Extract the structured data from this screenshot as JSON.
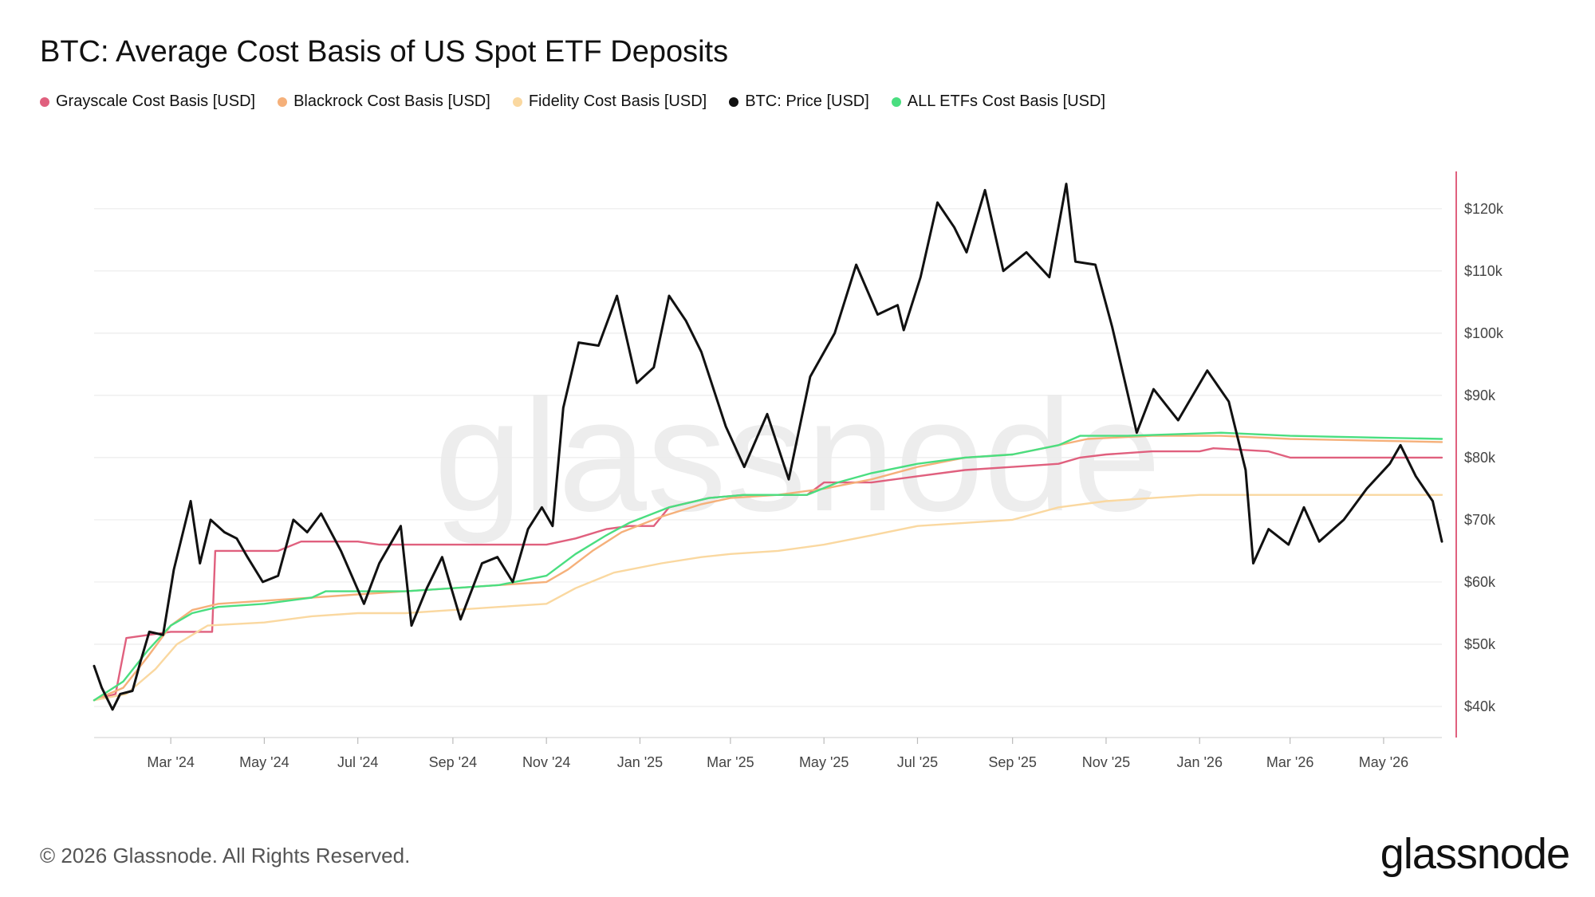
{
  "title": "BTC: Average Cost Basis of US Spot ETF Deposits",
  "footer": "© 2026 Glassnode. All Rights Reserved.",
  "brand": "glassnode",
  "watermark": "glassnode",
  "legend": [
    {
      "label": "Grayscale Cost Basis [USD]",
      "color": "#e0607e"
    },
    {
      "label": "Blackrock Cost Basis [USD]",
      "color": "#f5b07a"
    },
    {
      "label": "Fidelity Cost Basis [USD]",
      "color": "#fad8a0"
    },
    {
      "label": "BTC: Price [USD]",
      "color": "#111111"
    },
    {
      "label": "ALL ETFs Cost Basis [USD]",
      "color": "#4ade80"
    }
  ],
  "chart_data": {
    "type": "line",
    "title": "BTC: Average Cost Basis of US Spot ETF Deposits",
    "y_tick_labels": [
      "$40k",
      "$50k",
      "$60k",
      "$70k",
      "$80k",
      "$90k",
      "$100k",
      "$110k",
      "$120k"
    ],
    "y_ticks": [
      40000,
      50000,
      60000,
      70000,
      80000,
      90000,
      100000,
      110000,
      120000
    ],
    "x_tick_labels": [
      "Mar '24",
      "May '24",
      "Jul '24",
      "Sep '24",
      "Nov '24",
      "Jan '25",
      "Mar '25",
      "May '25",
      "Jul '25",
      "Sep '25",
      "Nov '25",
      "Jan '26",
      "Mar '26",
      "May '26"
    ],
    "x_tick_dates": [
      "2024-03-01",
      "2024-05-01",
      "2024-07-01",
      "2024-09-01",
      "2024-11-01",
      "2025-01-01",
      "2025-03-01",
      "2025-05-01",
      "2025-07-01",
      "2025-09-01",
      "2025-11-01",
      "2026-01-01",
      "2026-03-01",
      "2026-05-01"
    ],
    "xlim": [
      "2024-01-11",
      "2026-06-08"
    ],
    "ylim": [
      35000,
      126000
    ],
    "grid": true,
    "legend_position": "top-left",
    "y_axis_position": "right",
    "series": [
      {
        "name": "Grayscale Cost Basis [USD]",
        "color": "#e0607e",
        "points": [
          [
            "2024-01-11",
            41000
          ],
          [
            "2024-01-25",
            42000
          ],
          [
            "2024-02-01",
            51000
          ],
          [
            "2024-03-01",
            52000
          ],
          [
            "2024-03-28",
            52000
          ],
          [
            "2024-03-30",
            65000
          ],
          [
            "2024-05-01",
            65000
          ],
          [
            "2024-05-10",
            65000
          ],
          [
            "2024-05-25",
            66500
          ],
          [
            "2024-07-01",
            66500
          ],
          [
            "2024-07-15",
            66000
          ],
          [
            "2024-09-01",
            66000
          ],
          [
            "2024-11-01",
            66000
          ],
          [
            "2024-11-20",
            67000
          ],
          [
            "2024-12-10",
            68500
          ],
          [
            "2024-12-25",
            69000
          ],
          [
            "2025-01-10",
            69000
          ],
          [
            "2025-01-20",
            72000
          ],
          [
            "2025-02-15",
            73500
          ],
          [
            "2025-03-10",
            74000
          ],
          [
            "2025-04-20",
            74000
          ],
          [
            "2025-05-01",
            76000
          ],
          [
            "2025-06-01",
            76000
          ],
          [
            "2025-07-01",
            77000
          ],
          [
            "2025-08-01",
            78000
          ],
          [
            "2025-09-01",
            78500
          ],
          [
            "2025-10-01",
            79000
          ],
          [
            "2025-10-15",
            80000
          ],
          [
            "2025-11-01",
            80500
          ],
          [
            "2025-12-01",
            81000
          ],
          [
            "2026-01-01",
            81000
          ],
          [
            "2026-01-10",
            81500
          ],
          [
            "2026-02-15",
            81000
          ],
          [
            "2026-03-01",
            80000
          ],
          [
            "2026-06-08",
            80000
          ]
        ]
      },
      {
        "name": "Blackrock Cost Basis [USD]",
        "color": "#f5b07a",
        "points": [
          [
            "2024-01-11",
            41000
          ],
          [
            "2024-01-30",
            43000
          ],
          [
            "2024-02-15",
            48000
          ],
          [
            "2024-03-01",
            53000
          ],
          [
            "2024-03-15",
            55500
          ],
          [
            "2024-04-01",
            56500
          ],
          [
            "2024-05-01",
            57000
          ],
          [
            "2024-06-01",
            57500
          ],
          [
            "2024-07-01",
            58000
          ],
          [
            "2024-08-01",
            58500
          ],
          [
            "2024-09-01",
            59000
          ],
          [
            "2024-10-01",
            59500
          ],
          [
            "2024-11-01",
            60000
          ],
          [
            "2024-11-15",
            62000
          ],
          [
            "2024-12-01",
            65000
          ],
          [
            "2024-12-20",
            68000
          ],
          [
            "2025-01-15",
            70500
          ],
          [
            "2025-02-10",
            72500
          ],
          [
            "2025-03-01",
            73500
          ],
          [
            "2025-04-01",
            74000
          ],
          [
            "2025-05-01",
            75000
          ],
          [
            "2025-06-01",
            76500
          ],
          [
            "2025-07-01",
            78500
          ],
          [
            "2025-08-01",
            80000
          ],
          [
            "2025-09-01",
            80500
          ],
          [
            "2025-10-01",
            82000
          ],
          [
            "2025-10-20",
            83000
          ],
          [
            "2025-12-01",
            83500
          ],
          [
            "2026-01-15",
            83500
          ],
          [
            "2026-03-01",
            83000
          ],
          [
            "2026-06-08",
            82500
          ]
        ]
      },
      {
        "name": "Fidelity Cost Basis [USD]",
        "color": "#fad8a0",
        "points": [
          [
            "2024-01-11",
            41000
          ],
          [
            "2024-02-01",
            42000
          ],
          [
            "2024-02-20",
            46000
          ],
          [
            "2024-03-05",
            50000
          ],
          [
            "2024-03-25",
            53000
          ],
          [
            "2024-05-01",
            53500
          ],
          [
            "2024-06-01",
            54500
          ],
          [
            "2024-07-01",
            55000
          ],
          [
            "2024-08-01",
            55000
          ],
          [
            "2024-09-01",
            55500
          ],
          [
            "2024-10-01",
            56000
          ],
          [
            "2024-11-01",
            56500
          ],
          [
            "2024-11-20",
            59000
          ],
          [
            "2024-12-15",
            61500
          ],
          [
            "2025-01-15",
            63000
          ],
          [
            "2025-02-10",
            64000
          ],
          [
            "2025-03-01",
            64500
          ],
          [
            "2025-04-01",
            65000
          ],
          [
            "2025-05-01",
            66000
          ],
          [
            "2025-06-01",
            67500
          ],
          [
            "2025-07-01",
            69000
          ],
          [
            "2025-08-01",
            69500
          ],
          [
            "2025-09-01",
            70000
          ],
          [
            "2025-10-01",
            72000
          ],
          [
            "2025-11-01",
            73000
          ],
          [
            "2025-12-01",
            73500
          ],
          [
            "2026-01-01",
            74000
          ],
          [
            "2026-03-01",
            74000
          ],
          [
            "2026-06-08",
            74000
          ]
        ]
      },
      {
        "name": "ALL ETFs Cost Basis [USD]",
        "color": "#4ade80",
        "points": [
          [
            "2024-01-11",
            41000
          ],
          [
            "2024-01-30",
            44000
          ],
          [
            "2024-02-15",
            49000
          ],
          [
            "2024-03-01",
            53000
          ],
          [
            "2024-03-15",
            55000
          ],
          [
            "2024-04-01",
            56000
          ],
          [
            "2024-05-01",
            56500
          ],
          [
            "2024-06-01",
            57500
          ],
          [
            "2024-06-10",
            58500
          ],
          [
            "2024-07-01",
            58500
          ],
          [
            "2024-08-01",
            58500
          ],
          [
            "2024-09-01",
            59000
          ],
          [
            "2024-10-01",
            59500
          ],
          [
            "2024-11-01",
            61000
          ],
          [
            "2024-11-20",
            64500
          ],
          [
            "2024-12-10",
            67500
          ],
          [
            "2024-12-25",
            69500
          ],
          [
            "2025-01-20",
            72000
          ],
          [
            "2025-02-15",
            73500
          ],
          [
            "2025-03-10",
            74000
          ],
          [
            "2025-04-20",
            74000
          ],
          [
            "2025-05-10",
            76000
          ],
          [
            "2025-06-01",
            77500
          ],
          [
            "2025-07-01",
            79000
          ],
          [
            "2025-08-01",
            80000
          ],
          [
            "2025-09-01",
            80500
          ],
          [
            "2025-10-01",
            82000
          ],
          [
            "2025-10-15",
            83500
          ],
          [
            "2025-11-15",
            83500
          ],
          [
            "2026-01-15",
            84000
          ],
          [
            "2026-03-01",
            83500
          ],
          [
            "2026-06-08",
            83000
          ]
        ]
      },
      {
        "name": "BTC: Price [USD]",
        "color": "#111111",
        "points": [
          [
            "2024-01-11",
            46500
          ],
          [
            "2024-01-16",
            43000
          ],
          [
            "2024-01-23",
            39500
          ],
          [
            "2024-01-28",
            42000
          ],
          [
            "2024-02-05",
            42500
          ],
          [
            "2024-02-10",
            47000
          ],
          [
            "2024-02-16",
            52000
          ],
          [
            "2024-02-25",
            51500
          ],
          [
            "2024-03-03",
            62000
          ],
          [
            "2024-03-10",
            69000
          ],
          [
            "2024-03-14",
            73000
          ],
          [
            "2024-03-20",
            63000
          ],
          [
            "2024-03-27",
            70000
          ],
          [
            "2024-04-05",
            68000
          ],
          [
            "2024-04-13",
            67000
          ],
          [
            "2024-04-20",
            64000
          ],
          [
            "2024-04-30",
            60000
          ],
          [
            "2024-05-10",
            61000
          ],
          [
            "2024-05-20",
            70000
          ],
          [
            "2024-05-29",
            68000
          ],
          [
            "2024-06-07",
            71000
          ],
          [
            "2024-06-20",
            65000
          ],
          [
            "2024-07-05",
            56500
          ],
          [
            "2024-07-15",
            63000
          ],
          [
            "2024-07-29",
            69000
          ],
          [
            "2024-08-05",
            53000
          ],
          [
            "2024-08-15",
            59000
          ],
          [
            "2024-08-25",
            64000
          ],
          [
            "2024-09-06",
            54000
          ],
          [
            "2024-09-20",
            63000
          ],
          [
            "2024-09-30",
            64000
          ],
          [
            "2024-10-10",
            60000
          ],
          [
            "2024-10-20",
            68500
          ],
          [
            "2024-10-29",
            72000
          ],
          [
            "2024-11-05",
            69000
          ],
          [
            "2024-11-12",
            88000
          ],
          [
            "2024-11-22",
            98500
          ],
          [
            "2024-12-05",
            98000
          ],
          [
            "2024-12-17",
            106000
          ],
          [
            "2024-12-30",
            92000
          ],
          [
            "2025-01-10",
            94500
          ],
          [
            "2025-01-20",
            106000
          ],
          [
            "2025-01-31",
            102000
          ],
          [
            "2025-02-10",
            97000
          ],
          [
            "2025-02-26",
            85000
          ],
          [
            "2025-03-10",
            78500
          ],
          [
            "2025-03-25",
            87000
          ],
          [
            "2025-04-08",
            76500
          ],
          [
            "2025-04-22",
            93000
          ],
          [
            "2025-05-08",
            100000
          ],
          [
            "2025-05-22",
            111000
          ],
          [
            "2025-06-05",
            103000
          ],
          [
            "2025-06-18",
            104500
          ],
          [
            "2025-06-22",
            100500
          ],
          [
            "2025-07-03",
            109000
          ],
          [
            "2025-07-14",
            121000
          ],
          [
            "2025-07-25",
            117000
          ],
          [
            "2025-08-02",
            113000
          ],
          [
            "2025-08-14",
            123000
          ],
          [
            "2025-08-26",
            110000
          ],
          [
            "2025-09-10",
            113000
          ],
          [
            "2025-09-25",
            109000
          ],
          [
            "2025-10-06",
            124000
          ],
          [
            "2025-10-12",
            111500
          ],
          [
            "2025-10-25",
            111000
          ],
          [
            "2025-11-05",
            101000
          ],
          [
            "2025-11-21",
            84000
          ],
          [
            "2025-12-02",
            91000
          ],
          [
            "2025-12-18",
            86000
          ],
          [
            "2026-01-06",
            94000
          ],
          [
            "2026-01-20",
            89000
          ],
          [
            "2026-01-31",
            78000
          ],
          [
            "2026-02-05",
            63000
          ],
          [
            "2026-02-15",
            68500
          ],
          [
            "2026-02-28",
            66000
          ],
          [
            "2026-03-10",
            72000
          ],
          [
            "2026-03-20",
            66500
          ],
          [
            "2026-04-05",
            70000
          ],
          [
            "2026-04-20",
            75000
          ],
          [
            "2026-05-05",
            79000
          ],
          [
            "2026-05-12",
            82000
          ],
          [
            "2026-05-22",
            77000
          ],
          [
            "2026-06-02",
            73000
          ],
          [
            "2026-06-08",
            66500
          ]
        ]
      }
    ]
  }
}
